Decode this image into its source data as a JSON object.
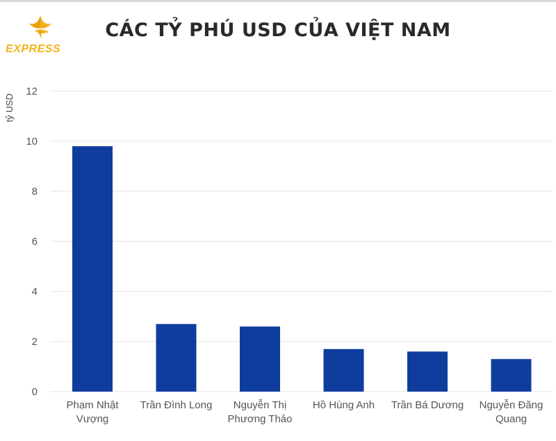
{
  "logo": {
    "text": "EXPRESS",
    "icon": "bird-logo-icon",
    "color": "#f2b21a"
  },
  "chart_data": {
    "type": "bar",
    "title": "CÁC TỶ PHÚ USD CỦA VIỆT NAM",
    "xlabel": "",
    "ylabel": "tỷ USD",
    "ylim": [
      0,
      12
    ],
    "yticks": [
      0,
      2,
      4,
      6,
      8,
      10,
      12
    ],
    "grid": true,
    "bar_color": "#0f3d9e",
    "categories": [
      [
        "Phạm Nhật",
        "Vượng"
      ],
      [
        "Trần Đình Long"
      ],
      [
        "Nguyễn Thị",
        "Phương Thảo"
      ],
      [
        "Hồ Hùng Anh"
      ],
      [
        "Trần Bá Dương"
      ],
      [
        "Nguyễn Đăng",
        "Quang"
      ]
    ],
    "values": [
      9.8,
      2.7,
      2.6,
      1.7,
      1.6,
      1.3
    ]
  }
}
